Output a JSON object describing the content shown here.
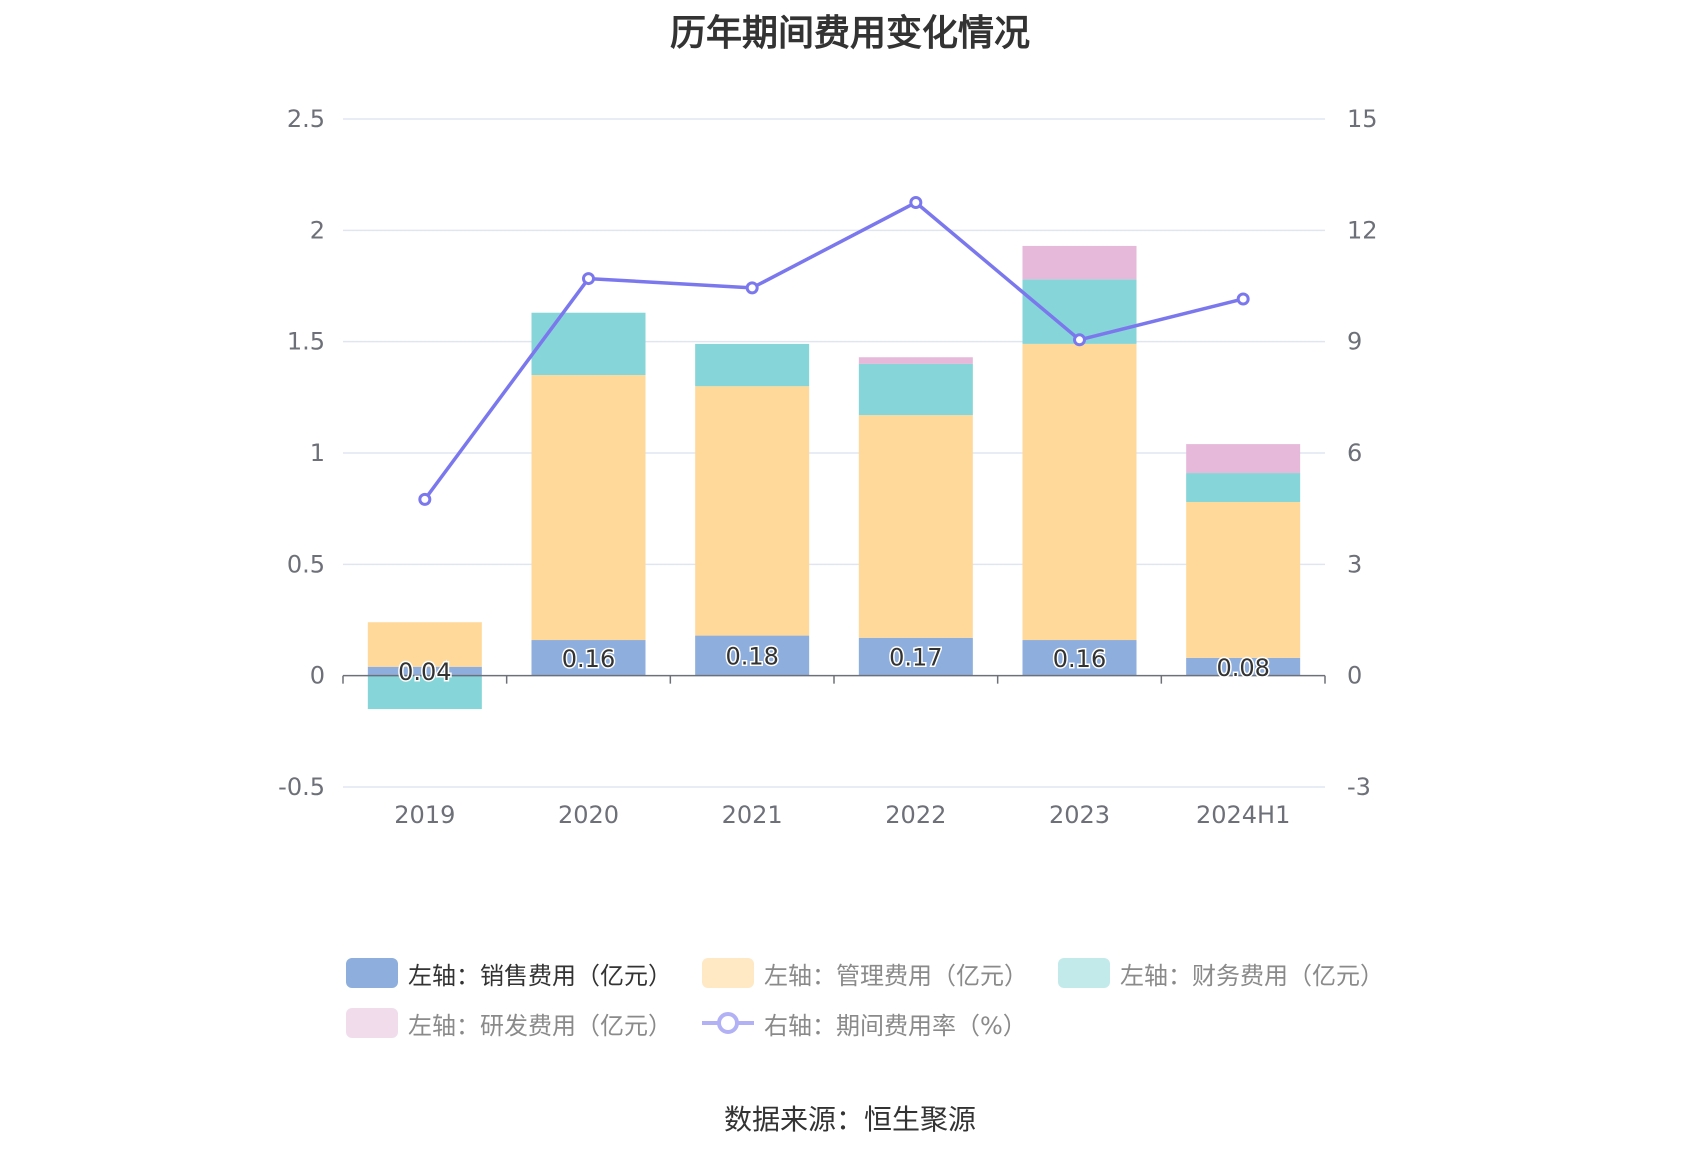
{
  "title": "历年期间费用变化情况",
  "source": "数据来源：恒生聚源",
  "colors": {
    "sales": "#8eaedd",
    "admin": "#ffd99a",
    "finance": "#86d5d8",
    "rd": "#e6b9da",
    "rate": "#7b78ee",
    "grid": "#e0e6f1",
    "axis": "#6e7079"
  },
  "legend": [
    {
      "label": "左轴：销售费用（亿元）",
      "color": "#8eaedd",
      "icon": "rect-swatch",
      "active": true
    },
    {
      "label": "左轴：管理费用（亿元）",
      "color": "#ffe8c4",
      "icon": "rect-swatch",
      "active": false
    },
    {
      "label": "左轴：财务费用（亿元）",
      "color": "#c3eaeb",
      "icon": "rect-swatch",
      "active": false
    },
    {
      "label": "左轴：研发费用（亿元）",
      "color": "#f1dcec",
      "icon": "rect-swatch",
      "active": false
    },
    {
      "label": "右轴：期间费用率（%）",
      "color": "#b3b1f5",
      "icon": "line-circle",
      "active": false
    }
  ],
  "chart_data": {
    "type": "bar",
    "stacked": true,
    "title": "历年期间费用变化情况",
    "categories": [
      "2019",
      "2020",
      "2021",
      "2022",
      "2023",
      "2024H1"
    ],
    "y_left": {
      "min": -0.5,
      "max": 2.5,
      "ticks": [
        "2.5",
        "2",
        "1.5",
        "1",
        "0.5",
        "0",
        "-0.5"
      ],
      "tick_values": [
        2.5,
        2,
        1.5,
        1,
        0.5,
        0,
        -0.5
      ]
    },
    "y_right": {
      "min": -3,
      "max": 15,
      "ticks": [
        "15",
        "12",
        "9",
        "6",
        "3",
        "0",
        "-3"
      ],
      "tick_values": [
        15,
        12,
        9,
        6,
        3,
        0,
        -3
      ]
    },
    "grid": true,
    "legend_position": "bottom",
    "series": [
      {
        "name": "左轴：销售费用（亿元）",
        "axis": "left",
        "type": "bar",
        "color": "#8eaedd",
        "values": [
          0.04,
          0.16,
          0.18,
          0.17,
          0.16,
          0.08
        ],
        "labels": [
          "0.04",
          "0.16",
          "0.18",
          "0.17",
          "0.16",
          "0.08"
        ]
      },
      {
        "name": "左轴：管理费用（亿元）",
        "axis": "left",
        "type": "bar",
        "color": "#ffd99a",
        "values": [
          0.2,
          1.19,
          1.12,
          1.0,
          1.33,
          0.7
        ]
      },
      {
        "name": "左轴：财务费用（亿元）",
        "axis": "left",
        "type": "bar",
        "color": "#86d5d8",
        "values": [
          -0.15,
          0.28,
          0.19,
          0.23,
          0.29,
          0.13
        ]
      },
      {
        "name": "左轴：研发费用（亿元）",
        "axis": "left",
        "type": "bar",
        "color": "#e6b9da",
        "values": [
          0,
          0,
          0,
          0.03,
          0.15,
          0.13
        ]
      },
      {
        "name": "右轴：期间费用率（%）",
        "axis": "right",
        "type": "line",
        "color": "#7b78ee",
        "values": [
          4.75,
          10.7,
          10.45,
          12.75,
          9.05,
          10.15
        ]
      }
    ]
  }
}
